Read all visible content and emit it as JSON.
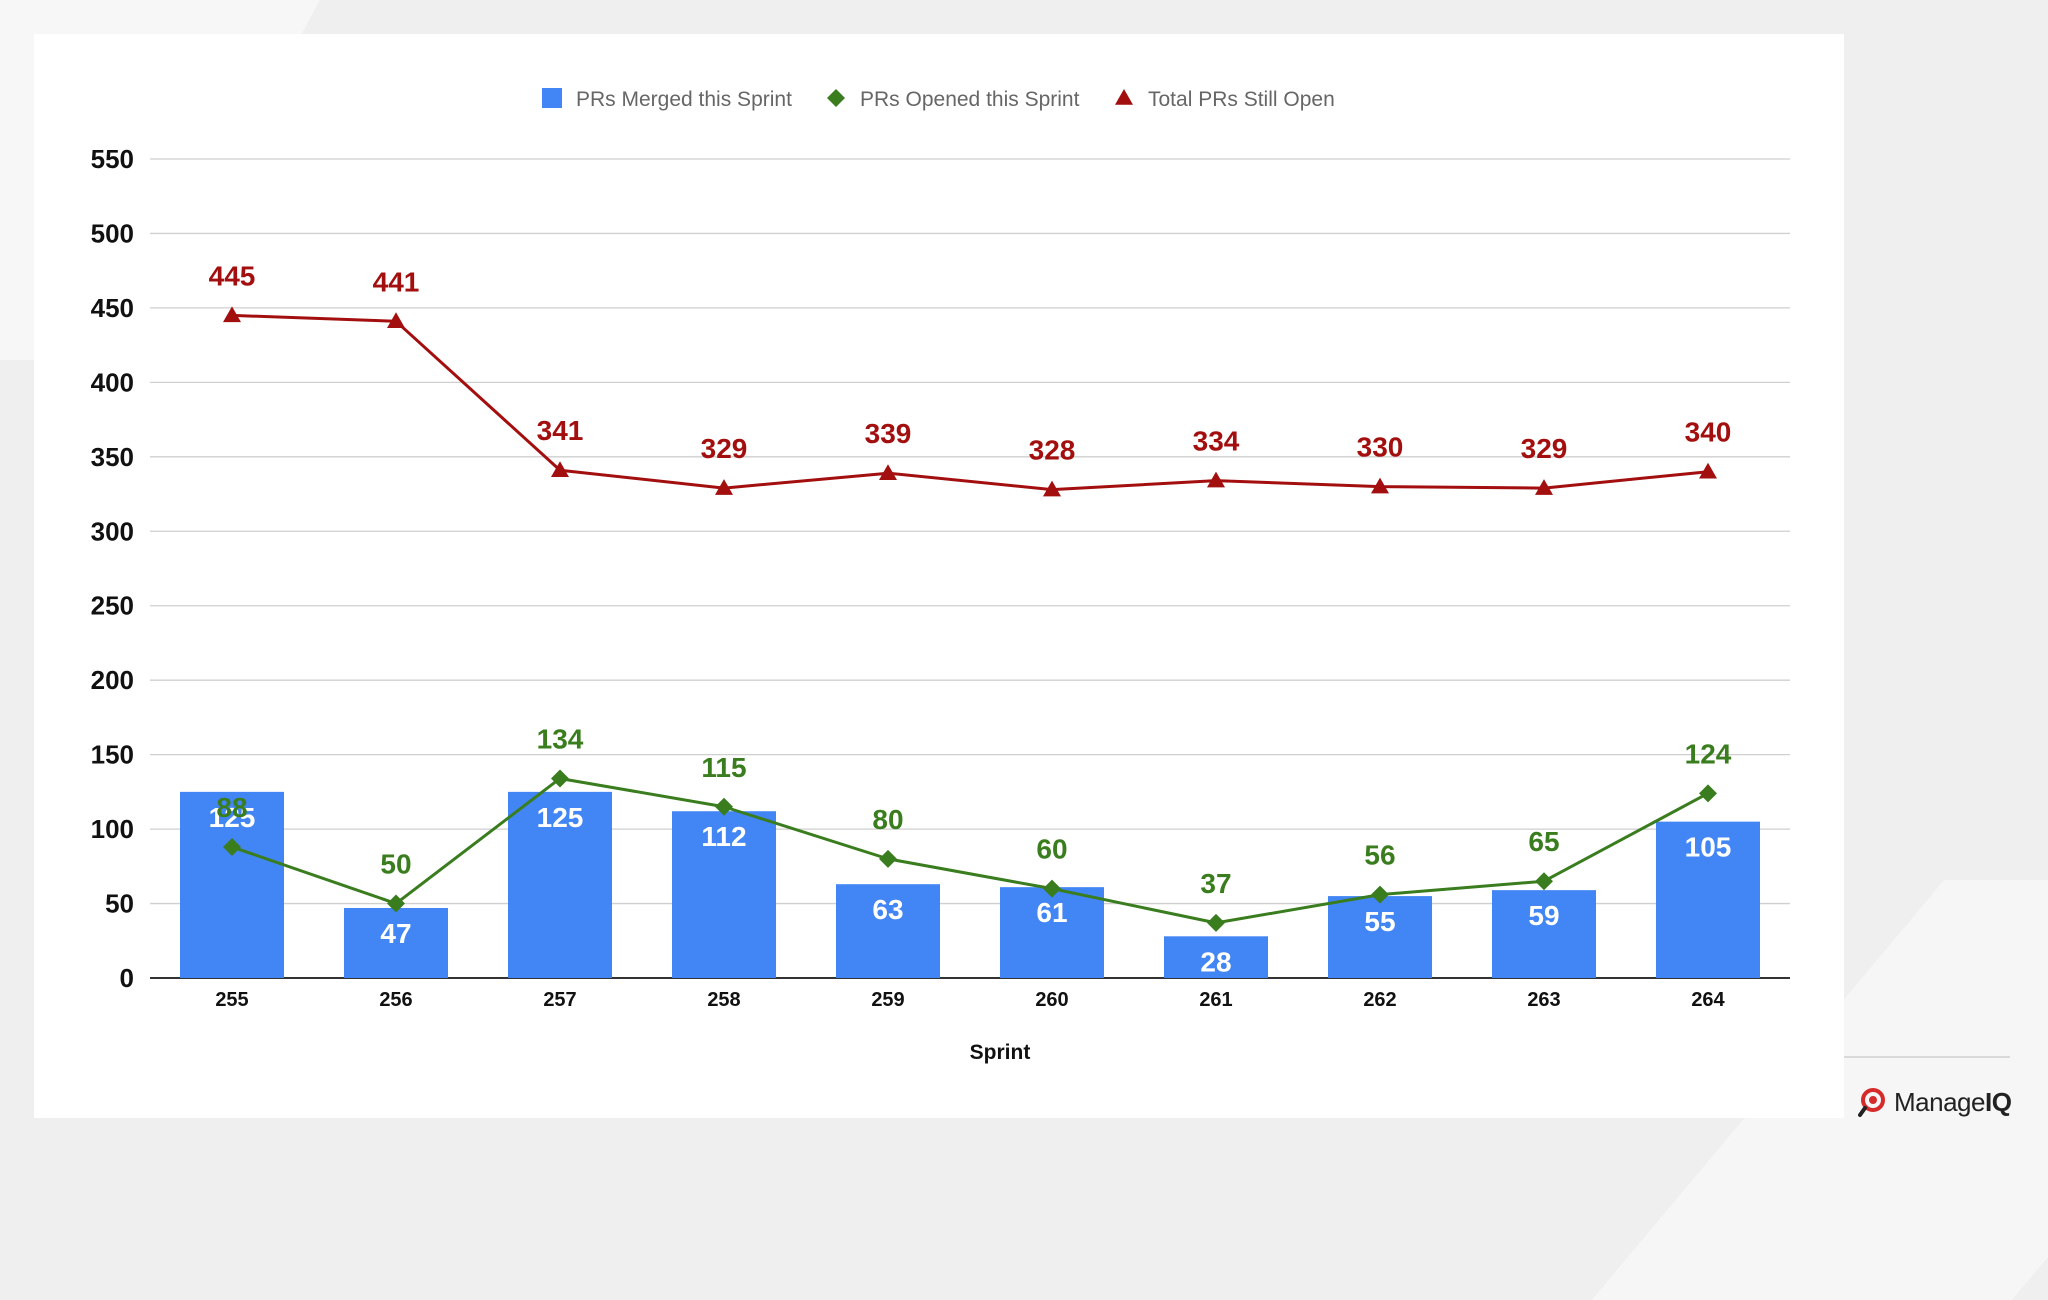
{
  "chart_data": {
    "type": "bar",
    "categories": [
      "255",
      "256",
      "257",
      "258",
      "259",
      "260",
      "261",
      "262",
      "263",
      "264"
    ],
    "series": [
      {
        "name": "PRs Merged this Sprint",
        "type": "bar",
        "color": "#4285f4",
        "values": [
          125,
          47,
          125,
          112,
          63,
          61,
          28,
          55,
          59,
          105
        ]
      },
      {
        "name": "PRs Opened this Sprint",
        "type": "line",
        "marker": "diamond",
        "color": "#3a7d1e",
        "values": [
          88,
          50,
          134,
          115,
          80,
          60,
          37,
          56,
          65,
          124
        ]
      },
      {
        "name": "Total PRs Still Open",
        "type": "line",
        "marker": "triangle",
        "color": "#a30f0f",
        "values": [
          445,
          441,
          341,
          329,
          339,
          328,
          334,
          330,
          329,
          340
        ]
      }
    ],
    "xlabel": "Sprint",
    "ylabel": "",
    "ylim": [
      0,
      550
    ],
    "yticks": [
      0,
      50,
      100,
      150,
      200,
      250,
      300,
      350,
      400,
      450,
      500,
      550
    ],
    "grid": true,
    "legend": "top-center"
  },
  "footer": {
    "logo_text_a": "Manage",
    "logo_text_b": "IQ"
  }
}
